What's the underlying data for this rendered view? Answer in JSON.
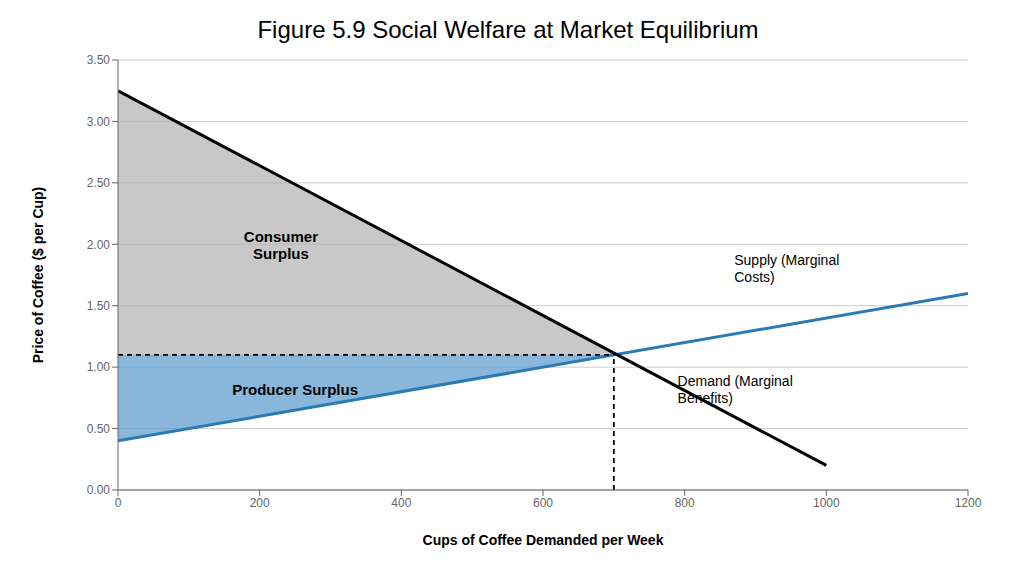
{
  "chart_data": {
    "type": "line",
    "title": "Figure 5.9 Social Welfare at Market Equilibrium",
    "x_label": "Cups of Coffee Demanded per Week",
    "y_label": "Price of Coffee ($ per Cup)",
    "xlim": [
      0,
      1200
    ],
    "ylim": [
      0.0,
      3.5
    ],
    "xticks": [
      0,
      200,
      400,
      600,
      800,
      1000,
      1200
    ],
    "yticks": [
      {
        "value": 0.0,
        "label": "0.00"
      },
      {
        "value": 0.5,
        "label": "0.50"
      },
      {
        "value": 1.0,
        "label": "1.00"
      },
      {
        "value": 1.5,
        "label": "1.50"
      },
      {
        "value": 2.0,
        "label": "2.00"
      },
      {
        "value": 2.5,
        "label": "2.50"
      },
      {
        "value": 3.0,
        "label": "3.00"
      },
      {
        "value": 3.5,
        "label": "3.50"
      }
    ],
    "grid": "y",
    "series": [
      {
        "type": "area",
        "color": "#b0b0b0",
        "x": [
          0,
          0,
          700
        ],
        "values": [
          1.1,
          3.25,
          1.1
        ]
      },
      {
        "type": "area",
        "color": "#5599cc",
        "x": [
          0,
          0,
          700
        ],
        "values": [
          1.1,
          0.4,
          1.1
        ]
      },
      {
        "type": "line",
        "color": "#2a7ab5",
        "x": [
          0,
          1200
        ],
        "values": [
          0.4,
          1.6
        ]
      },
      {
        "type": "line",
        "color": "#000000",
        "x": [
          0,
          1000
        ],
        "values": [
          3.25,
          0.2
        ]
      }
    ],
    "equilibrium": {
      "x": 700,
      "y": 1.1,
      "color": "#000000",
      "line_style": "dashed"
    },
    "annotations": [
      {
        "text": "Consumer\nSurplus",
        "x": 230,
        "y": 2.0
      },
      {
        "text": "Producer Surplus",
        "x": 250,
        "y": 0.82
      },
      {
        "text": "Supply (Marginal\nCosts)",
        "x": 870,
        "y": 1.8
      },
      {
        "text": "Demand  (Marginal\nBenefits)",
        "x": 790,
        "y": 0.82
      }
    ]
  }
}
